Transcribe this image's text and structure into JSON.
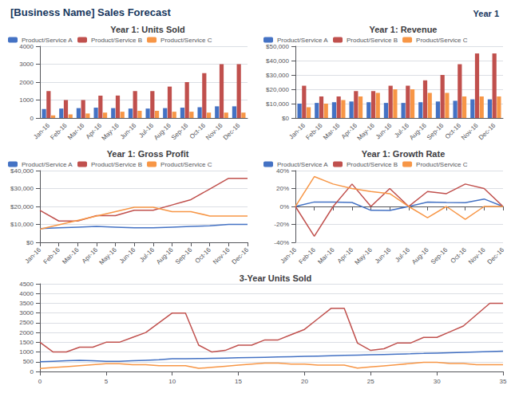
{
  "title": "[Business Name] Sales Forecast",
  "subtitle": "Year 1",
  "chart_data": [
    {
      "type": "bar",
      "title": "Year 1: Units Sold",
      "categories": [
        "Jan-16",
        "Feb-16",
        "Mar-16",
        "Apr-16",
        "May-16",
        "Jun-16",
        "Jul-16",
        "Aug-16",
        "Sep-16",
        "Oct-16",
        "Nov-16",
        "Dec-16"
      ],
      "series": [
        {
          "name": "Product/Service A",
          "color": "#4472C4",
          "values": [
            500,
            525,
            550,
            575,
            550,
            525,
            525,
            550,
            575,
            600,
            650,
            650
          ]
        },
        {
          "name": "Product/Service B",
          "color": "#C0504D",
          "values": [
            1500,
            1000,
            1000,
            1250,
            1250,
            1500,
            1500,
            1750,
            2000,
            2500,
            3000,
            3000
          ]
        },
        {
          "name": "Product/Service C",
          "color": "#F79646",
          "values": [
            150,
            200,
            250,
            300,
            350,
            400,
            400,
            350,
            350,
            300,
            300,
            300
          ]
        }
      ],
      "ylim": [
        0,
        4000
      ],
      "yticks": [
        0,
        1000,
        2000,
        3000,
        4000
      ],
      "grid": true,
      "legend": "upper left"
    },
    {
      "type": "bar",
      "title": "Year 1: Revenue",
      "categories": [
        "Jan-16",
        "Feb-16",
        "Mar-16",
        "Apr-16",
        "May-16",
        "Jun-16",
        "Jul-16",
        "Aug-16",
        "Sep-16",
        "Oct-16",
        "Nov-16",
        "Dec-16"
      ],
      "series": [
        {
          "name": "Product/Service A",
          "color": "#4472C4",
          "values": [
            9995,
            10492,
            10992,
            11490,
            10990,
            10492,
            10492,
            10990,
            11490,
            11988,
            12989,
            12989
          ]
        },
        {
          "name": "Product/Service B",
          "color": "#C0504D",
          "values": [
            22485,
            14990,
            14990,
            18738,
            18738,
            22485,
            22485,
            26233,
            29980,
            37475,
            44970,
            44970
          ]
        },
        {
          "name": "Product/Service C",
          "color": "#F79646",
          "values": [
            7499,
            9998,
            12498,
            14997,
            17497,
            19996,
            19996,
            17497,
            17497,
            14997,
            14997,
            14997
          ]
        }
      ],
      "ylim": [
        0,
        50000
      ],
      "yticks": [
        {
          "value": 0,
          "label": "$0"
        },
        {
          "value": 10000,
          "label": "$10,000"
        },
        {
          "value": 20000,
          "label": "$20,000"
        },
        {
          "value": 30000,
          "label": "$30,000"
        },
        {
          "value": 40000,
          "label": "$40,000"
        },
        {
          "value": 50000,
          "label": "$50,000"
        }
      ],
      "grid": true,
      "legend": "upper left"
    },
    {
      "type": "line",
      "title": "Year 1: Gross Profit",
      "categories": [
        "Jan-16",
        "Feb-16",
        "Mar-16",
        "Apr-16",
        "May-16",
        "Jun-16",
        "Jul-16",
        "Aug-16",
        "Sep-16",
        "Oct-16",
        "Nov-16",
        "Dec-16"
      ],
      "series": [
        {
          "name": "Product/Service A",
          "color": "#4472C4",
          "values": [
            7700,
            8085,
            8470,
            8854,
            8470,
            8085,
            8085,
            8470,
            8854,
            9238,
            10007,
            10007
          ]
        },
        {
          "name": "Product/Service B",
          "color": "#C0504D",
          "values": [
            17850,
            11900,
            11900,
            14875,
            14875,
            17850,
            17850,
            20825,
            23800,
            29750,
            35700,
            35700
          ]
        },
        {
          "name": "Product/Service C",
          "color": "#F79646",
          "values": [
            7350,
            9800,
            12250,
            14700,
            17150,
            19600,
            19600,
            17150,
            17150,
            14700,
            14700,
            14700
          ]
        }
      ],
      "ylim": [
        0,
        40000
      ],
      "yticks": [
        {
          "value": 0,
          "label": "$0"
        },
        {
          "value": 10000,
          "label": "$10,000"
        },
        {
          "value": 20000,
          "label": "$20,000"
        },
        {
          "value": 30000,
          "label": "$30,000"
        },
        {
          "value": 40000,
          "label": "$40,000"
        }
      ],
      "grid": true,
      "legend": "upper left"
    },
    {
      "type": "line",
      "title": "Year 1: Growth Rate",
      "categories": [
        "Jan-16",
        "Feb-16",
        "Mar-16",
        "Apr-16",
        "May-16",
        "Jun-16",
        "Jul-16",
        "Aug-16",
        "Sep-16",
        "Oct-16",
        "Nov-16",
        "Dec-16"
      ],
      "series": [
        {
          "name": "Product/Service A",
          "color": "#4472C4",
          "values": [
            0,
            5,
            4.8,
            4.5,
            -4.3,
            -4.5,
            0,
            4.8,
            4.5,
            4.3,
            8.3,
            0
          ]
        },
        {
          "name": "Product/Service B",
          "color": "#C0504D",
          "values": [
            0,
            -33.3,
            0,
            25,
            0,
            20,
            0,
            16.7,
            14.3,
            25,
            20,
            0
          ]
        },
        {
          "name": "Product/Service C",
          "color": "#F79646",
          "values": [
            0,
            33.3,
            25,
            20,
            16.7,
            14.3,
            0,
            -12.5,
            0,
            -14.3,
            0,
            0
          ]
        }
      ],
      "ylim": [
        -40,
        40
      ],
      "yticks": [
        {
          "value": -40,
          "label": "-40%"
        },
        {
          "value": -20,
          "label": "-20%"
        },
        {
          "value": 0,
          "label": "0%"
        },
        {
          "value": 20,
          "label": "20%"
        },
        {
          "value": 40,
          "label": "40%"
        }
      ],
      "grid": true,
      "legend": "upper left"
    },
    {
      "type": "line",
      "title": "3-Year Units Sold",
      "x": [
        0,
        1,
        2,
        3,
        4,
        5,
        6,
        7,
        8,
        9,
        10,
        11,
        12,
        13,
        14,
        15,
        16,
        17,
        18,
        19,
        20,
        21,
        22,
        23,
        24,
        25,
        26,
        27,
        28,
        29,
        30,
        31,
        32,
        33,
        34,
        35
      ],
      "series": [
        {
          "color": "#4472C4",
          "values": [
            500,
            525,
            550,
            575,
            550,
            525,
            525,
            550,
            575,
            600,
            650,
            650,
            663,
            676,
            689,
            703,
            717,
            731,
            746,
            761,
            776,
            792,
            808,
            824,
            840,
            857,
            874,
            892,
            909,
            927,
            946,
            965,
            984,
            1004,
            1024,
            1044
          ]
        },
        {
          "color": "#C0504D",
          "values": [
            1500,
            1000,
            1000,
            1250,
            1250,
            1500,
            1500,
            1750,
            2000,
            2500,
            3000,
            3000,
            1350,
            1000,
            1080,
            1350,
            1350,
            1620,
            1620,
            1890,
            2160,
            2700,
            3240,
            3240,
            1458,
            1080,
            1166,
            1458,
            1458,
            1750,
            1750,
            2041,
            2333,
            2916,
            3499,
            3499
          ]
        },
        {
          "color": "#F79646",
          "values": [
            150,
            200,
            250,
            300,
            350,
            400,
            400,
            350,
            350,
            300,
            300,
            300,
            162,
            216,
            270,
            324,
            378,
            432,
            432,
            378,
            378,
            324,
            324,
            324,
            175,
            233,
            291,
            349,
            408,
            466,
            466,
            408,
            408,
            350,
            350,
            350
          ]
        }
      ],
      "xlim": [
        0,
        35
      ],
      "xticks": [
        0,
        5,
        10,
        15,
        20,
        25,
        30,
        35
      ],
      "ylim": [
        0,
        4500
      ],
      "yticks": [
        0,
        500,
        1000,
        1500,
        2000,
        2500,
        3000,
        3500,
        4000,
        4500
      ],
      "grid": true
    }
  ]
}
